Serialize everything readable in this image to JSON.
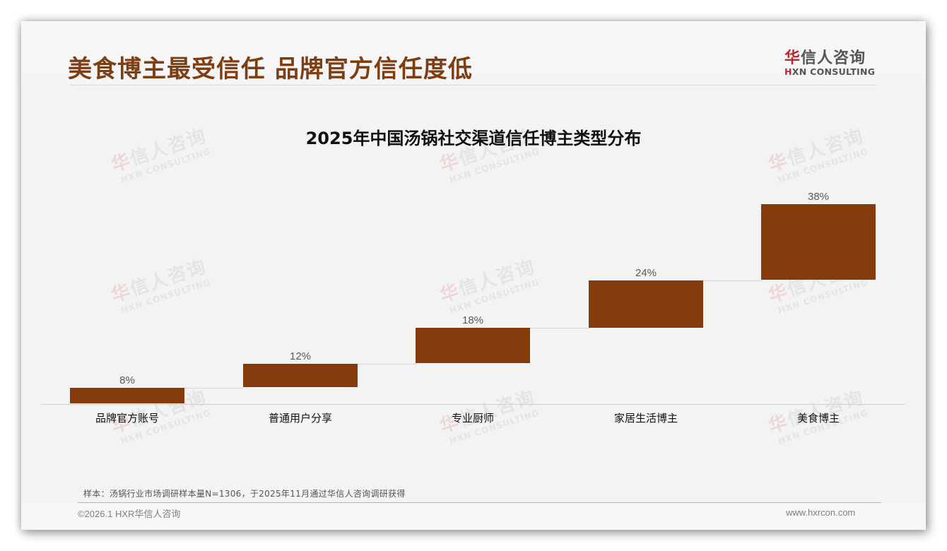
{
  "header": {
    "title": "美食博主最受信任 品牌官方信任度低",
    "logo": {
      "cn_first": "华",
      "cn_rest": "信人咨询",
      "en_first": "H",
      "en_rest": "XN CONSULTING"
    }
  },
  "watermark": {
    "cn_first": "华",
    "cn_rest": "信人咨询",
    "en": "HXN CONSULTING"
  },
  "chart_data": {
    "type": "bar",
    "subtype": "waterfall",
    "title": "2025年中国汤锅社交渠道信任博主类型分布",
    "categories": [
      "品牌官方账号",
      "普通用户分享",
      "专业厨师",
      "家居生活博主",
      "美食博主"
    ],
    "values": [
      8,
      12,
      18,
      24,
      38
    ],
    "value_labels": [
      "8%",
      "12%",
      "18%",
      "24%",
      "38%"
    ],
    "cumulative_start": [
      0,
      8,
      20,
      38,
      62
    ],
    "cumulative_end": [
      8,
      20,
      38,
      62,
      100
    ],
    "unit": "%",
    "xlabel": "",
    "ylabel": "",
    "ylim": [
      0,
      100
    ],
    "grid": false,
    "legend": "none",
    "bar_color": "#843c0c"
  },
  "footer": {
    "note": "样本：汤锅行业市场调研样本量N=1306，于2025年11月通过华信人咨询调研获得",
    "copyright": "©2026.1 HXR华信人咨询",
    "website": "www.hxrcon.com"
  }
}
